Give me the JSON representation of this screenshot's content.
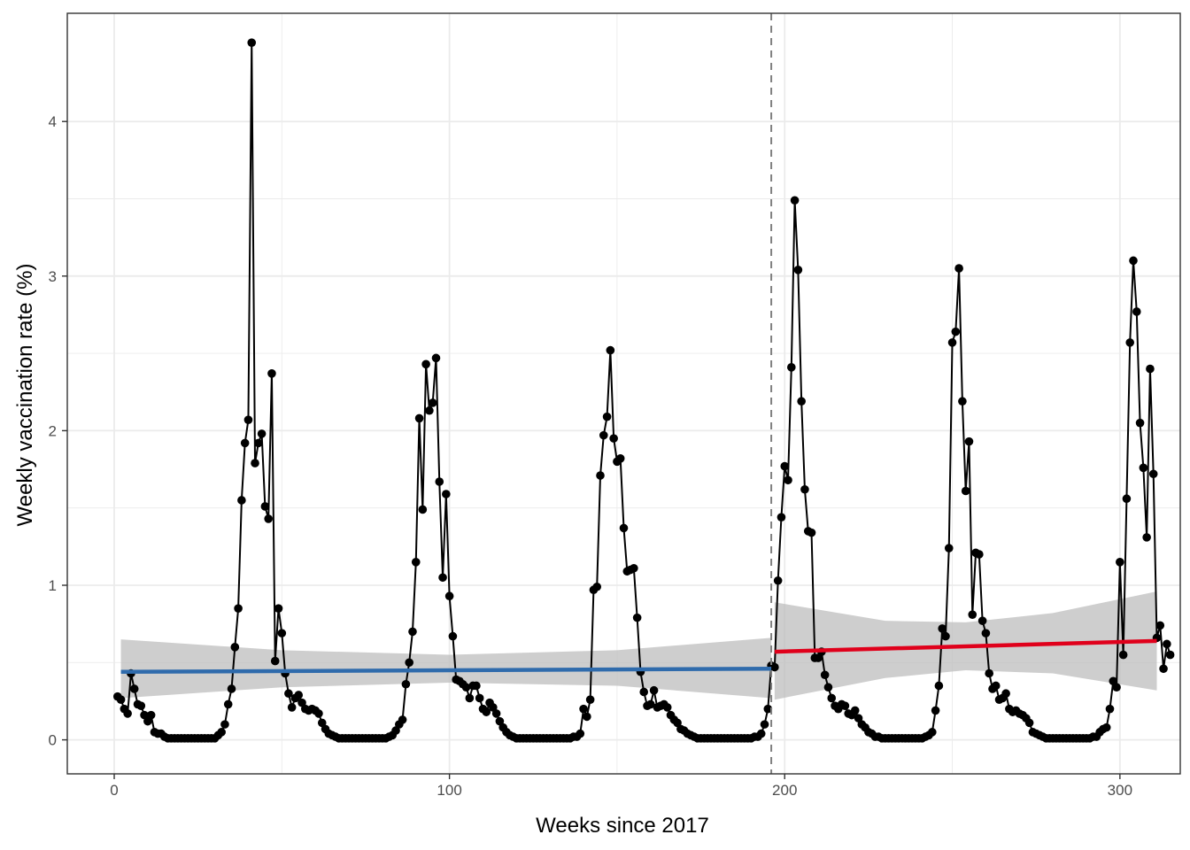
{
  "chart_data": {
    "type": "line",
    "title": "",
    "xlabel": "Weeks since 2017",
    "ylabel": "Weekly vaccination rate (%)",
    "xlim": [
      -14,
      318
    ],
    "ylim": [
      -0.22,
      4.7
    ],
    "x_ticks": [
      0,
      100,
      200,
      300
    ],
    "y_ticks": [
      0,
      1,
      2,
      3,
      4
    ],
    "grid": true,
    "legend": "none",
    "intervention_week": 196,
    "colors": {
      "observed": "#000000",
      "pre_trend": "#2F6BAC",
      "post_trend": "#E0001B",
      "confidence_band": "#BEBEBE",
      "intervention_line": "#7F7F7F"
    },
    "series": [
      {
        "kind": "observed",
        "x_start": 1,
        "values": [
          0.28,
          0.26,
          0.2,
          0.17,
          0.43,
          0.33,
          0.23,
          0.22,
          0.16,
          0.12,
          0.16,
          0.05,
          0.04,
          0.04,
          0.02,
          0.01,
          0.01,
          0.01,
          0.01,
          0.01,
          0.01,
          0.01,
          0.01,
          0.01,
          0.01,
          0.01,
          0.01,
          0.01,
          0.01,
          0.01,
          0.03,
          0.05,
          0.1,
          0.23,
          0.33,
          0.6,
          0.85,
          1.55,
          1.92,
          2.07,
          4.51,
          1.79,
          1.92,
          1.98,
          1.51,
          1.43,
          2.37,
          0.51,
          0.85,
          0.69,
          0.43,
          0.3,
          0.21,
          0.27,
          0.29,
          0.24,
          0.2,
          0.19,
          0.2,
          0.19,
          0.17,
          0.11,
          0.07,
          0.04,
          0.03,
          0.02,
          0.01,
          0.01,
          0.01,
          0.01,
          0.01,
          0.01,
          0.01,
          0.01,
          0.01,
          0.01,
          0.01,
          0.01,
          0.01,
          0.01,
          0.01,
          0.02,
          0.03,
          0.06,
          0.1,
          0.13,
          0.36,
          0.5,
          0.7,
          1.15,
          2.08,
          1.49,
          2.43,
          2.13,
          2.18,
          2.47,
          1.67,
          1.05,
          1.59,
          0.93,
          0.67,
          0.39,
          0.38,
          0.36,
          0.34,
          0.27,
          0.35,
          0.35,
          0.27,
          0.2,
          0.18,
          0.24,
          0.21,
          0.17,
          0.12,
          0.08,
          0.05,
          0.03,
          0.02,
          0.01,
          0.01,
          0.01,
          0.01,
          0.01,
          0.01,
          0.01,
          0.01,
          0.01,
          0.01,
          0.01,
          0.01,
          0.01,
          0.01,
          0.01,
          0.01,
          0.01,
          0.02,
          0.02,
          0.04,
          0.2,
          0.15,
          0.26,
          0.97,
          0.99,
          1.71,
          1.97,
          2.09,
          2.52,
          1.95,
          1.8,
          1.82,
          1.37,
          1.09,
          1.1,
          1.11,
          0.79,
          0.44,
          0.31,
          0.22,
          0.23,
          0.32,
          0.21,
          0.22,
          0.23,
          0.21,
          0.16,
          0.13,
          0.11,
          0.07,
          0.06,
          0.04,
          0.03,
          0.02,
          0.01,
          0.01,
          0.01,
          0.01,
          0.01,
          0.01,
          0.01,
          0.01,
          0.01,
          0.01,
          0.01,
          0.01,
          0.01,
          0.01,
          0.01,
          0.01,
          0.01,
          0.02,
          0.02,
          0.04,
          0.1,
          0.2,
          0.48,
          0.47,
          1.03,
          1.44,
          1.77,
          1.68,
          2.41,
          3.49,
          3.04,
          2.19,
          1.62,
          1.35,
          1.34,
          0.53,
          0.53,
          0.57,
          0.42,
          0.34,
          0.27,
          0.22,
          0.2,
          0.23,
          0.22,
          0.17,
          0.16,
          0.19,
          0.14,
          0.1,
          0.08,
          0.05,
          0.04,
          0.02,
          0.02,
          0.01,
          0.01,
          0.01,
          0.01,
          0.01,
          0.01,
          0.01,
          0.01,
          0.01,
          0.01,
          0.01,
          0.01,
          0.01,
          0.02,
          0.03,
          0.05,
          0.19,
          0.35,
          0.72,
          0.67,
          1.24,
          2.57,
          2.64,
          3.05,
          2.19,
          1.61,
          1.93,
          0.81,
          1.21,
          1.2,
          0.77,
          0.69,
          0.43,
          0.33,
          0.35,
          0.26,
          0.27,
          0.3,
          0.2,
          0.18,
          0.19,
          0.17,
          0.16,
          0.14,
          0.11,
          0.05,
          0.04,
          0.03,
          0.02,
          0.01,
          0.01,
          0.01,
          0.01,
          0.01,
          0.01,
          0.01,
          0.01,
          0.01,
          0.01,
          0.01,
          0.01,
          0.01,
          0.01,
          0.02,
          0.02,
          0.05,
          0.07,
          0.08,
          0.2,
          0.38,
          0.34,
          1.15,
          0.55,
          1.56,
          2.57,
          3.1,
          2.77,
          2.05,
          1.76,
          1.31,
          2.4,
          1.72,
          0.66,
          0.74,
          0.46,
          0.62,
          0.55
        ]
      },
      {
        "kind": "pre_trend",
        "x": [
          2,
          196
        ],
        "y": [
          0.44,
          0.46
        ],
        "band_x": [
          2,
          50,
          100,
          150,
          196
        ],
        "band_lower": [
          0.27,
          0.34,
          0.37,
          0.35,
          0.27
        ],
        "band_upper": [
          0.65,
          0.58,
          0.55,
          0.58,
          0.66
        ]
      },
      {
        "kind": "post_trend",
        "x": [
          197,
          311
        ],
        "y": [
          0.57,
          0.64
        ],
        "band_x": [
          197,
          230,
          254,
          280,
          311
        ],
        "band_lower": [
          0.26,
          0.4,
          0.45,
          0.43,
          0.32
        ],
        "band_upper": [
          0.89,
          0.77,
          0.76,
          0.82,
          0.96
        ]
      }
    ]
  }
}
